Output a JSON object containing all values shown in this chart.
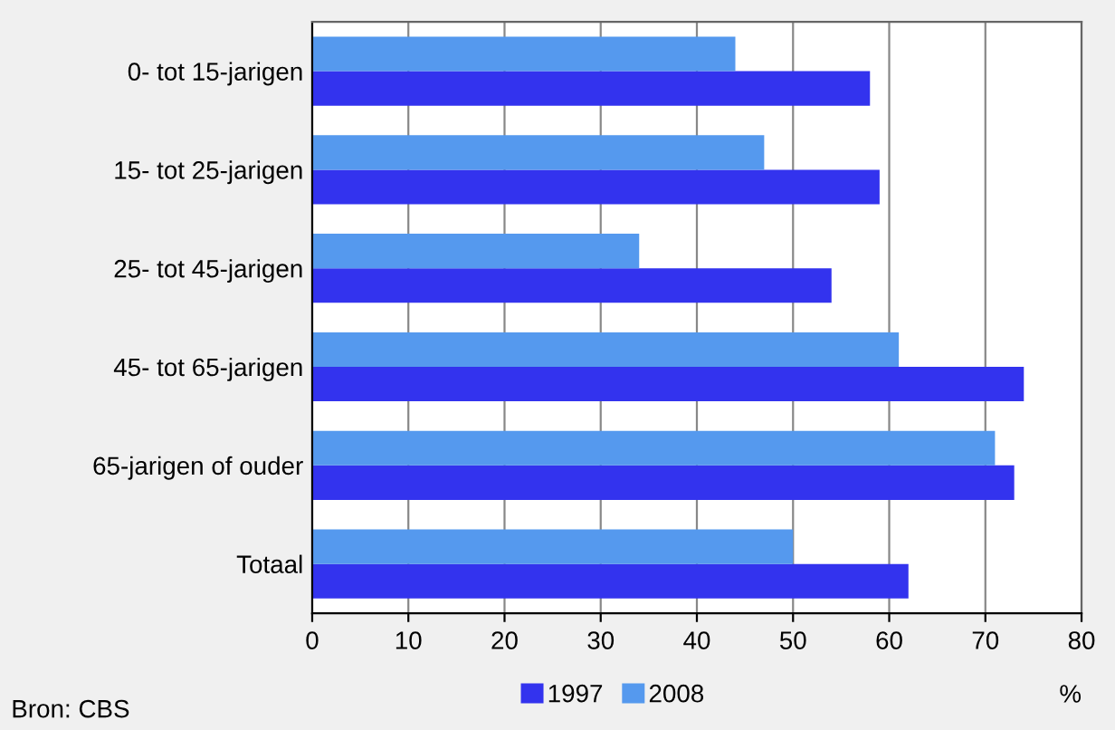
{
  "chart_data": {
    "type": "bar",
    "orientation": "horizontal",
    "categories": [
      "0- tot 15-jarigen",
      "15- tot 25-jarigen",
      "25- tot 45-jarigen",
      "45- tot 65-jarigen",
      "65-jarigen of ouder",
      "Totaal"
    ],
    "series": [
      {
        "name": "1997",
        "color": "#3333ee",
        "values": [
          58,
          59,
          54,
          74,
          73,
          62
        ]
      },
      {
        "name": "2008",
        "color": "#5599ee",
        "values": [
          44,
          47,
          34,
          61,
          71,
          50
        ]
      }
    ],
    "xlabel": "%",
    "xlim": [
      0,
      80
    ],
    "xticks": [
      0,
      10,
      20,
      30,
      40,
      50,
      60,
      70,
      80
    ],
    "grid": "x",
    "legend": "bottom",
    "annotations": [
      "Bron: CBS"
    ]
  }
}
